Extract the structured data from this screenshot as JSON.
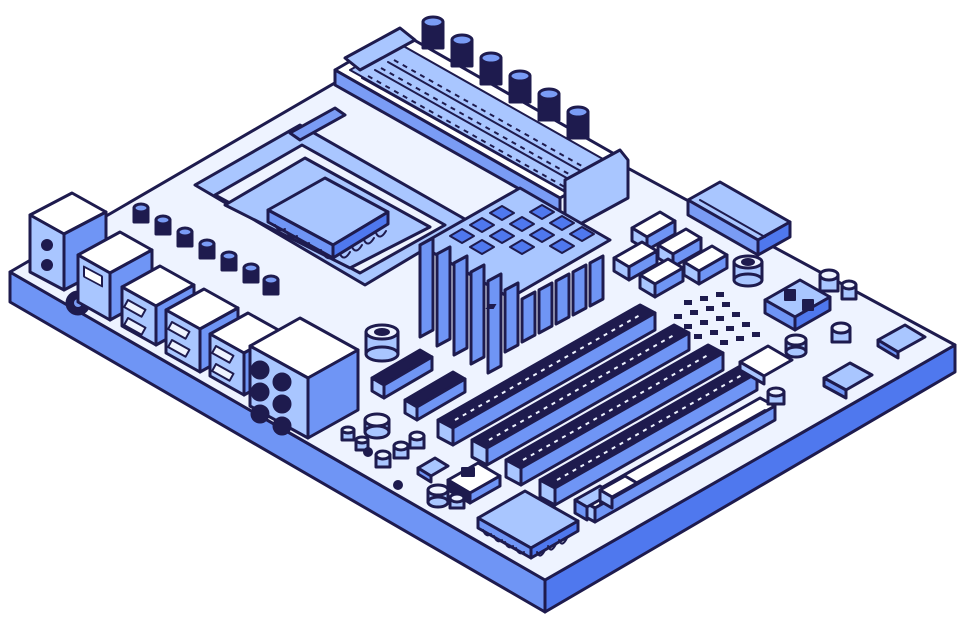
{
  "image": {
    "subject": "motherboard-illustration",
    "style": "isometric-line-art"
  },
  "colors": {
    "outline": "#1e1b4e",
    "board_top": "#eef3ff",
    "board_front": "#6f95f5",
    "board_side": "#4f78ee",
    "light_blue": "#a9c6ff",
    "mid_blue": "#7a9cf5",
    "dark_navy": "#1e1b4e",
    "white": "#ffffff"
  },
  "icons": {
    "cpu": "cpu-chip-icon",
    "ram": "memory-slot-icon",
    "heatsink": "heatsink-icon",
    "capacitor": "capacitor-icon",
    "pcie": "expansion-slot-icon",
    "io": "io-port-icon"
  }
}
